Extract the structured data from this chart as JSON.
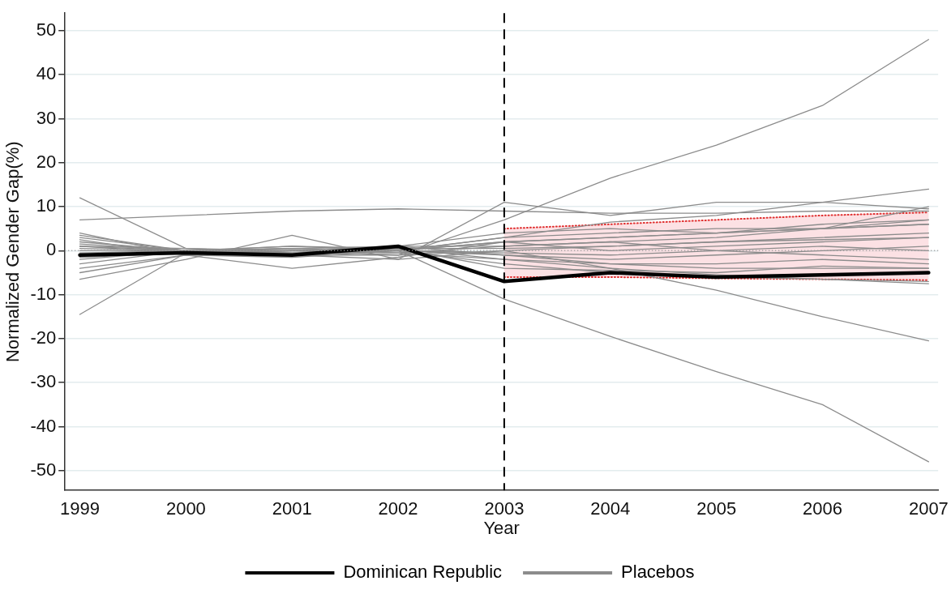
{
  "chart_data": {
    "type": "line",
    "xlabel": "Year",
    "ylabel": "Normalized Gender Gap(%)",
    "x": [
      1999,
      2000,
      2001,
      2002,
      2003,
      2004,
      2005,
      2006,
      2007
    ],
    "xlim": [
      1998.86,
      2007.09
    ],
    "xticks": [
      1999,
      2000,
      2001,
      2002,
      2003,
      2004,
      2005,
      2006,
      2007
    ],
    "ylim": [
      -54.5,
      54
    ],
    "yticks": [
      -50,
      -40,
      -30,
      -20,
      -10,
      0,
      10,
      20,
      30,
      40,
      50
    ],
    "grid": "y",
    "legend": "bottom",
    "marker": "none",
    "line_style": "solid",
    "ref_lines": [
      {
        "axis": "x",
        "value": 2003,
        "label": null,
        "color": "#000000",
        "line_style": "dashed"
      },
      {
        "axis": "y",
        "value": 0,
        "label": null,
        "color": "#999999",
        "line_style": "dotted"
      }
    ],
    "series": [
      {
        "name": "Dominican Republic",
        "color": "#000000",
        "values": [
          -1,
          -0.5,
          -1,
          1,
          -7,
          -5,
          -6,
          -5.5,
          -5
        ]
      },
      {
        "name": "Placebos",
        "color": "#8c8c8c",
        "values": [
          3,
          0,
          1,
          0,
          2,
          3,
          4,
          5,
          6
        ]
      },
      {
        "color": "#8c8c8c",
        "values": [
          12,
          0.5,
          -0.5,
          0.5,
          -2,
          -4,
          -5.5,
          -6.5,
          -7.5
        ]
      },
      {
        "color": "#8c8c8c",
        "values": [
          1,
          -0.5,
          0,
          -1,
          7,
          16.5,
          24,
          33,
          48
        ]
      },
      {
        "color": "#8c8c8c",
        "values": [
          1,
          0,
          -1,
          0,
          -11,
          -19.5,
          -27.5,
          -35,
          -48
        ]
      },
      {
        "color": "#8c8c8c",
        "values": [
          -2,
          0,
          -1,
          -1,
          0,
          -4,
          -9,
          -15,
          -20.5
        ]
      },
      {
        "color": "#8c8c8c",
        "values": [
          7,
          8,
          9,
          9.5,
          9,
          8.5,
          8.5,
          9,
          9
        ]
      },
      {
        "color": "#8c8c8c",
        "values": [
          -1,
          -0.5,
          -1,
          -2,
          11,
          8,
          11,
          11,
          9.5
        ]
      },
      {
        "color": "#8c8c8c",
        "values": [
          0,
          0,
          0.5,
          0,
          3,
          6.5,
          8,
          11,
          14
        ]
      },
      {
        "color": "#8c8c8c",
        "values": [
          -14.5,
          -0.5,
          0,
          -0.5,
          1,
          2,
          3,
          5,
          10
        ]
      },
      {
        "color": "#8c8c8c",
        "values": [
          -6.5,
          -2,
          3.5,
          -2,
          0,
          1,
          2,
          3,
          4
        ]
      },
      {
        "color": "#8c8c8c",
        "values": [
          4,
          -1,
          -4,
          -1.5,
          2,
          3,
          4,
          6,
          7
        ]
      },
      {
        "color": "#8c8c8c",
        "values": [
          -4,
          -1,
          -1.5,
          0,
          -3,
          -5,
          -6,
          -6.5,
          -7
        ]
      },
      {
        "color": "#8c8c8c",
        "values": [
          2,
          0,
          0,
          1,
          -1,
          -2,
          -1,
          0,
          1
        ]
      },
      {
        "color": "#8c8c8c",
        "values": [
          -3,
          0,
          1,
          0.5,
          0.5,
          1,
          2,
          2.5,
          3
        ]
      },
      {
        "color": "#8c8c8c",
        "values": [
          1.5,
          0,
          -0.5,
          0,
          -1,
          -3,
          -3,
          -2,
          -3
        ]
      },
      {
        "color": "#8c8c8c",
        "values": [
          -5,
          -1,
          0,
          1,
          4,
          5,
          4,
          5,
          6
        ]
      },
      {
        "color": "#8c8c8c",
        "values": [
          3.5,
          0,
          0,
          -0.5,
          -2,
          -3,
          -4,
          -4,
          -4
        ]
      },
      {
        "color": "#8c8c8c",
        "values": [
          0.5,
          0,
          0.5,
          1,
          1,
          2,
          0,
          -1,
          -2
        ]
      },
      {
        "color": "#8c8c8c",
        "values": [
          2.5,
          -1,
          0,
          0,
          3,
          4,
          5,
          5,
          7
        ]
      },
      {
        "color": "#8c8c8c",
        "values": [
          -1.5,
          -0.5,
          -1,
          0.5,
          -4,
          -4.5,
          -5,
          -3.5,
          -4
        ]
      },
      {
        "color": "#8c8c8c",
        "values": [
          1,
          0.5,
          0,
          0,
          2,
          0,
          1,
          2,
          3
        ]
      },
      {
        "color": "#8c8c8c",
        "values": [
          -0.5,
          0,
          0.5,
          0,
          -0.5,
          -1,
          0,
          1,
          0
        ]
      },
      {
        "color": "#e03030",
        "line_style": "dotted",
        "values": [
          null,
          null,
          null,
          null,
          5,
          6,
          7,
          8,
          8.7
        ]
      },
      {
        "color": "#e03030",
        "line_style": "dotted",
        "values": [
          null,
          null,
          null,
          null,
          -6,
          -6,
          -6.3,
          -6.5,
          -6.7
        ]
      },
      {
        "color": "#e03030",
        "values": [
          null,
          null,
          null,
          null,
          null,
          null,
          null,
          null,
          null
        ],
        "lower": [
          null,
          null,
          null,
          null,
          -6,
          -6,
          -6.3,
          -6.5,
          -6.7
        ],
        "upper": [
          null,
          null,
          null,
          null,
          5,
          6,
          7,
          8,
          8.7
        ]
      }
    ]
  }
}
